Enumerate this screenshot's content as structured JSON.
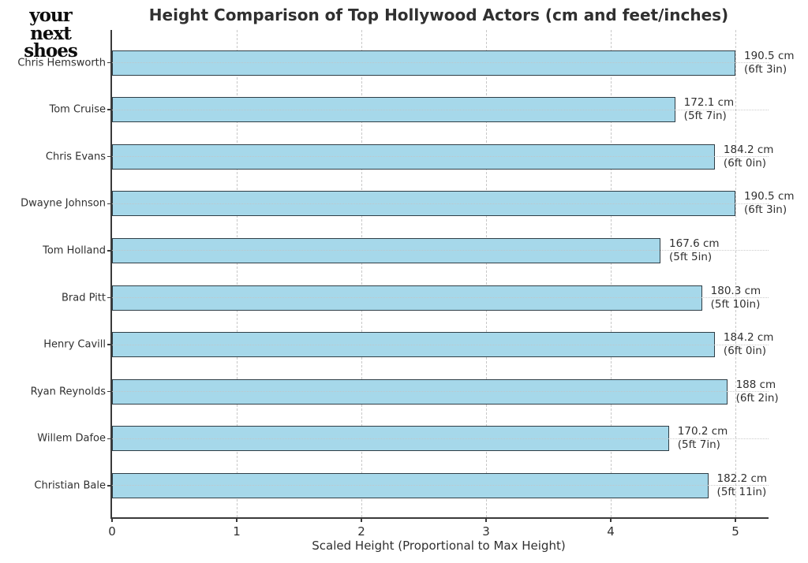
{
  "logo": {
    "line1": "your next",
    "line2": "shoes"
  },
  "chart_data": {
    "type": "bar",
    "orientation": "horizontal",
    "title": "Height Comparison of Top Hollywood Actors (cm and feet/inches)",
    "xlabel": "Scaled Height (Proportional to Max Height)",
    "xlim": [
      0,
      5.27
    ],
    "xticks": [
      "0",
      "1",
      "2",
      "3",
      "4",
      "5"
    ],
    "grid": true,
    "legend": false,
    "bar_color": "#a6d8ea",
    "bar_edge_color": "#2f3e46",
    "max_height_cm": 190.5,
    "bars": [
      {
        "actor": "Chris Hemsworth",
        "height_cm": 190.5,
        "scaled": 5.0,
        "label_cm": "190.5 cm",
        "label_ft": "(6ft 3in)"
      },
      {
        "actor": "Tom Cruise",
        "height_cm": 172.1,
        "scaled": 4.517,
        "label_cm": "172.1 cm",
        "label_ft": "(5ft 7in)"
      },
      {
        "actor": "Chris Evans",
        "height_cm": 184.2,
        "scaled": 4.835,
        "label_cm": "184.2 cm",
        "label_ft": "(6ft 0in)"
      },
      {
        "actor": "Dwayne Johnson",
        "height_cm": 190.5,
        "scaled": 5.0,
        "label_cm": "190.5 cm",
        "label_ft": "(6ft 3in)"
      },
      {
        "actor": "Tom Holland",
        "height_cm": 167.6,
        "scaled": 4.399,
        "label_cm": "167.6 cm",
        "label_ft": "(5ft 5in)"
      },
      {
        "actor": "Brad Pitt",
        "height_cm": 180.3,
        "scaled": 4.732,
        "label_cm": "180.3 cm",
        "label_ft": "(5ft 10in)"
      },
      {
        "actor": "Henry Cavill",
        "height_cm": 184.2,
        "scaled": 4.835,
        "label_cm": "184.2 cm",
        "label_ft": "(6ft 0in)"
      },
      {
        "actor": "Ryan Reynolds",
        "height_cm": 188.0,
        "scaled": 4.934,
        "label_cm": "188 cm",
        "label_ft": "(6ft 2in)"
      },
      {
        "actor": "Willem Dafoe",
        "height_cm": 170.2,
        "scaled": 4.467,
        "label_cm": "170.2 cm",
        "label_ft": "(5ft 7in)"
      },
      {
        "actor": "Christian Bale",
        "height_cm": 182.2,
        "scaled": 4.782,
        "label_cm": "182.2 cm",
        "label_ft": "(5ft 11in)"
      }
    ]
  }
}
